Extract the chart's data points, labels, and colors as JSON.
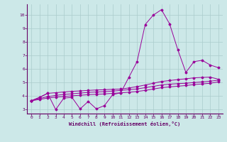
{
  "xlabel": "Windchill (Refroidissement éolien,°C)",
  "bg_color": "#cce8e8",
  "line_color": "#990099",
  "grid_color": "#aacccc",
  "spine_color": "#660066",
  "text_color": "#660066",
  "xlim": [
    -0.5,
    23.5
  ],
  "ylim": [
    2.7,
    10.8
  ],
  "yticks": [
    3,
    4,
    5,
    6,
    7,
    8,
    9,
    10
  ],
  "xticks": [
    0,
    1,
    2,
    3,
    4,
    5,
    6,
    7,
    8,
    9,
    10,
    11,
    12,
    13,
    14,
    15,
    16,
    17,
    18,
    19,
    20,
    21,
    22,
    23
  ],
  "series": {
    "line1_jagged": {
      "x": [
        0,
        1,
        2,
        3,
        4,
        5,
        6,
        7,
        8,
        9,
        10,
        11,
        12,
        13,
        14,
        15,
        16,
        17,
        18,
        19,
        20,
        21,
        22,
        23
      ],
      "y": [
        3.65,
        3.9,
        4.2,
        3.0,
        3.85,
        3.9,
        3.05,
        3.6,
        3.05,
        3.3,
        4.1,
        4.25,
        5.4,
        6.55,
        9.3,
        10.0,
        10.4,
        9.35,
        7.45,
        5.75,
        6.55,
        6.65,
        6.3,
        6.1
      ]
    },
    "line2_upper": {
      "x": [
        0,
        1,
        2,
        3,
        4,
        5,
        6,
        7,
        8,
        9,
        10,
        11,
        12,
        13,
        14,
        15,
        16,
        17,
        18,
        19,
        20,
        21,
        22,
        23
      ],
      "y": [
        3.65,
        3.9,
        4.2,
        4.25,
        4.3,
        4.35,
        4.38,
        4.42,
        4.45,
        4.47,
        4.5,
        4.52,
        4.6,
        4.7,
        4.82,
        4.95,
        5.08,
        5.15,
        5.22,
        5.28,
        5.35,
        5.38,
        5.4,
        5.25
      ]
    },
    "line3_mid": {
      "x": [
        0,
        1,
        2,
        3,
        4,
        5,
        6,
        7,
        8,
        9,
        10,
        11,
        12,
        13,
        14,
        15,
        16,
        17,
        18,
        19,
        20,
        21,
        22,
        23
      ],
      "y": [
        3.65,
        3.82,
        3.95,
        4.05,
        4.12,
        4.17,
        4.22,
        4.27,
        4.3,
        4.33,
        4.37,
        4.42,
        4.47,
        4.53,
        4.62,
        4.72,
        4.82,
        4.88,
        4.92,
        4.95,
        5.0,
        5.05,
        5.1,
        5.18
      ]
    },
    "line4_lower": {
      "x": [
        0,
        1,
        2,
        3,
        4,
        5,
        6,
        7,
        8,
        9,
        10,
        11,
        12,
        13,
        14,
        15,
        16,
        17,
        18,
        19,
        20,
        21,
        22,
        23
      ],
      "y": [
        3.65,
        3.75,
        3.85,
        3.92,
        3.97,
        4.02,
        4.06,
        4.1,
        4.13,
        4.16,
        4.2,
        4.24,
        4.28,
        4.34,
        4.42,
        4.52,
        4.62,
        4.68,
        4.73,
        4.78,
        4.85,
        4.9,
        4.95,
        5.05
      ]
    }
  }
}
